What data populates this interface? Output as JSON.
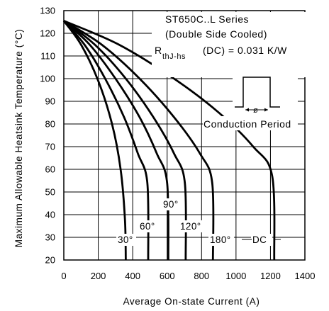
{
  "chart_data": {
    "type": "line",
    "xlabel": "Average On-state Current (A)",
    "ylabel": "Maximum Allowable Heatsink Temperature (°C)",
    "xlim": [
      0,
      1400
    ],
    "ylim": [
      20,
      130
    ],
    "xticks": [
      0,
      200,
      400,
      600,
      800,
      1000,
      1200,
      1400
    ],
    "yticks": [
      20,
      30,
      40,
      50,
      60,
      70,
      80,
      90,
      100,
      110,
      120,
      130
    ],
    "grid": true,
    "annotations": {
      "series_title": "ST650C..L Series",
      "cooling": "(Double Side Cooled)",
      "rth_main": "R",
      "rth_sub": "thJ-hs",
      "rth_value": "(DC) = 0.031 K/W",
      "conduction": "Conduction Period",
      "phi": "ø"
    },
    "series": [
      {
        "label": "30°",
        "points": [
          [
            0,
            125.5
          ],
          [
            100,
            115
          ],
          [
            200,
            99
          ],
          [
            280,
            80
          ],
          [
            330,
            60
          ],
          [
            355,
            38
          ],
          [
            360,
            20
          ]
        ]
      },
      {
        "label": "60°",
        "points": [
          [
            0,
            125.5
          ],
          [
            120,
            115
          ],
          [
            240,
            100
          ],
          [
            350,
            83
          ],
          [
            430,
            67
          ],
          [
            485,
            54
          ],
          [
            490,
            20
          ]
        ]
      },
      {
        "label": "90°",
        "points": [
          [
            0,
            125.5
          ],
          [
            150,
            115
          ],
          [
            300,
            100
          ],
          [
            440,
            83
          ],
          [
            540,
            67
          ],
          [
            600,
            54
          ],
          [
            607,
            20
          ]
        ]
      },
      {
        "label": "120°",
        "points": [
          [
            0,
            125.5
          ],
          [
            180,
            115
          ],
          [
            360,
            100
          ],
          [
            520,
            83
          ],
          [
            640,
            67
          ],
          [
            703,
            54
          ],
          [
            708,
            20
          ]
        ]
      },
      {
        "label": "180°",
        "points": [
          [
            0,
            125.5
          ],
          [
            220,
            115
          ],
          [
            440,
            100
          ],
          [
            640,
            83
          ],
          [
            790,
            67
          ],
          [
            862,
            54
          ],
          [
            866,
            20
          ]
        ]
      },
      {
        "label": "DC",
        "points": [
          [
            0,
            125.5
          ],
          [
            320,
            115
          ],
          [
            640,
            100
          ],
          [
            900,
            85
          ],
          [
            1100,
            70
          ],
          [
            1210,
            57
          ],
          [
            1222,
            20
          ]
        ]
      }
    ]
  }
}
